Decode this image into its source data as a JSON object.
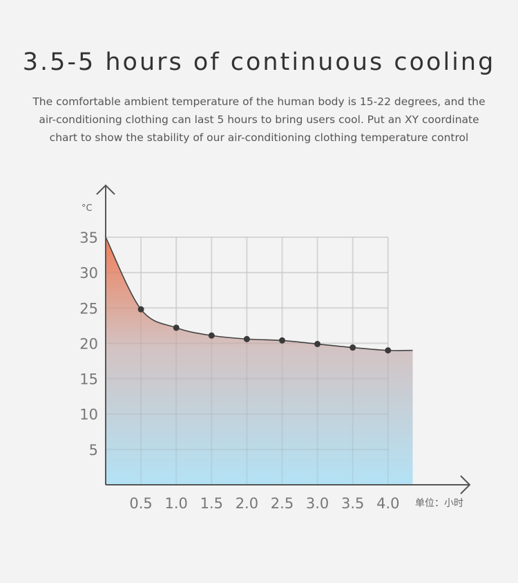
{
  "header": {
    "title": "3.5-5 hours of continuous cooling",
    "subtitle": "The comfortable ambient temperature of the human body is 15-22 degrees, and the air-conditioning clothing can last 5 hours to bring users cool. Put an XY coordinate chart to show the stability of our air-conditioning clothing temperature control"
  },
  "chart_data": {
    "type": "area",
    "ylabel": "°C",
    "xlabel": "单位：小时",
    "xlim": [
      0,
      4.35
    ],
    "ylim": [
      0,
      35
    ],
    "x_ticks": [
      "0.5",
      "1.0",
      "1.5",
      "2.0",
      "2.5",
      "3.0",
      "3.5",
      "4.0"
    ],
    "y_ticks": [
      "5",
      "10",
      "15",
      "20",
      "25",
      "30",
      "35"
    ],
    "grid": true,
    "points": [
      {
        "x": 0,
        "y": 35,
        "marker": false
      },
      {
        "x": 0.5,
        "y": 24.8,
        "marker": true
      },
      {
        "x": 1.0,
        "y": 22.2,
        "marker": true
      },
      {
        "x": 1.5,
        "y": 21.1,
        "marker": true
      },
      {
        "x": 2.0,
        "y": 20.6,
        "marker": true
      },
      {
        "x": 2.5,
        "y": 20.4,
        "marker": true
      },
      {
        "x": 3.0,
        "y": 19.9,
        "marker": true
      },
      {
        "x": 3.5,
        "y": 19.4,
        "marker": true
      },
      {
        "x": 4.0,
        "y": 19.0,
        "marker": true
      },
      {
        "x": 4.35,
        "y": 19.0,
        "marker": false
      }
    ],
    "colors": {
      "fill_top": "#ef7f5a",
      "fill_mid": "#d3c3c3",
      "fill_bottom": "#b3e2f5",
      "line": "#444444",
      "grid": "#e2e2e2",
      "axis": "#555555"
    }
  }
}
